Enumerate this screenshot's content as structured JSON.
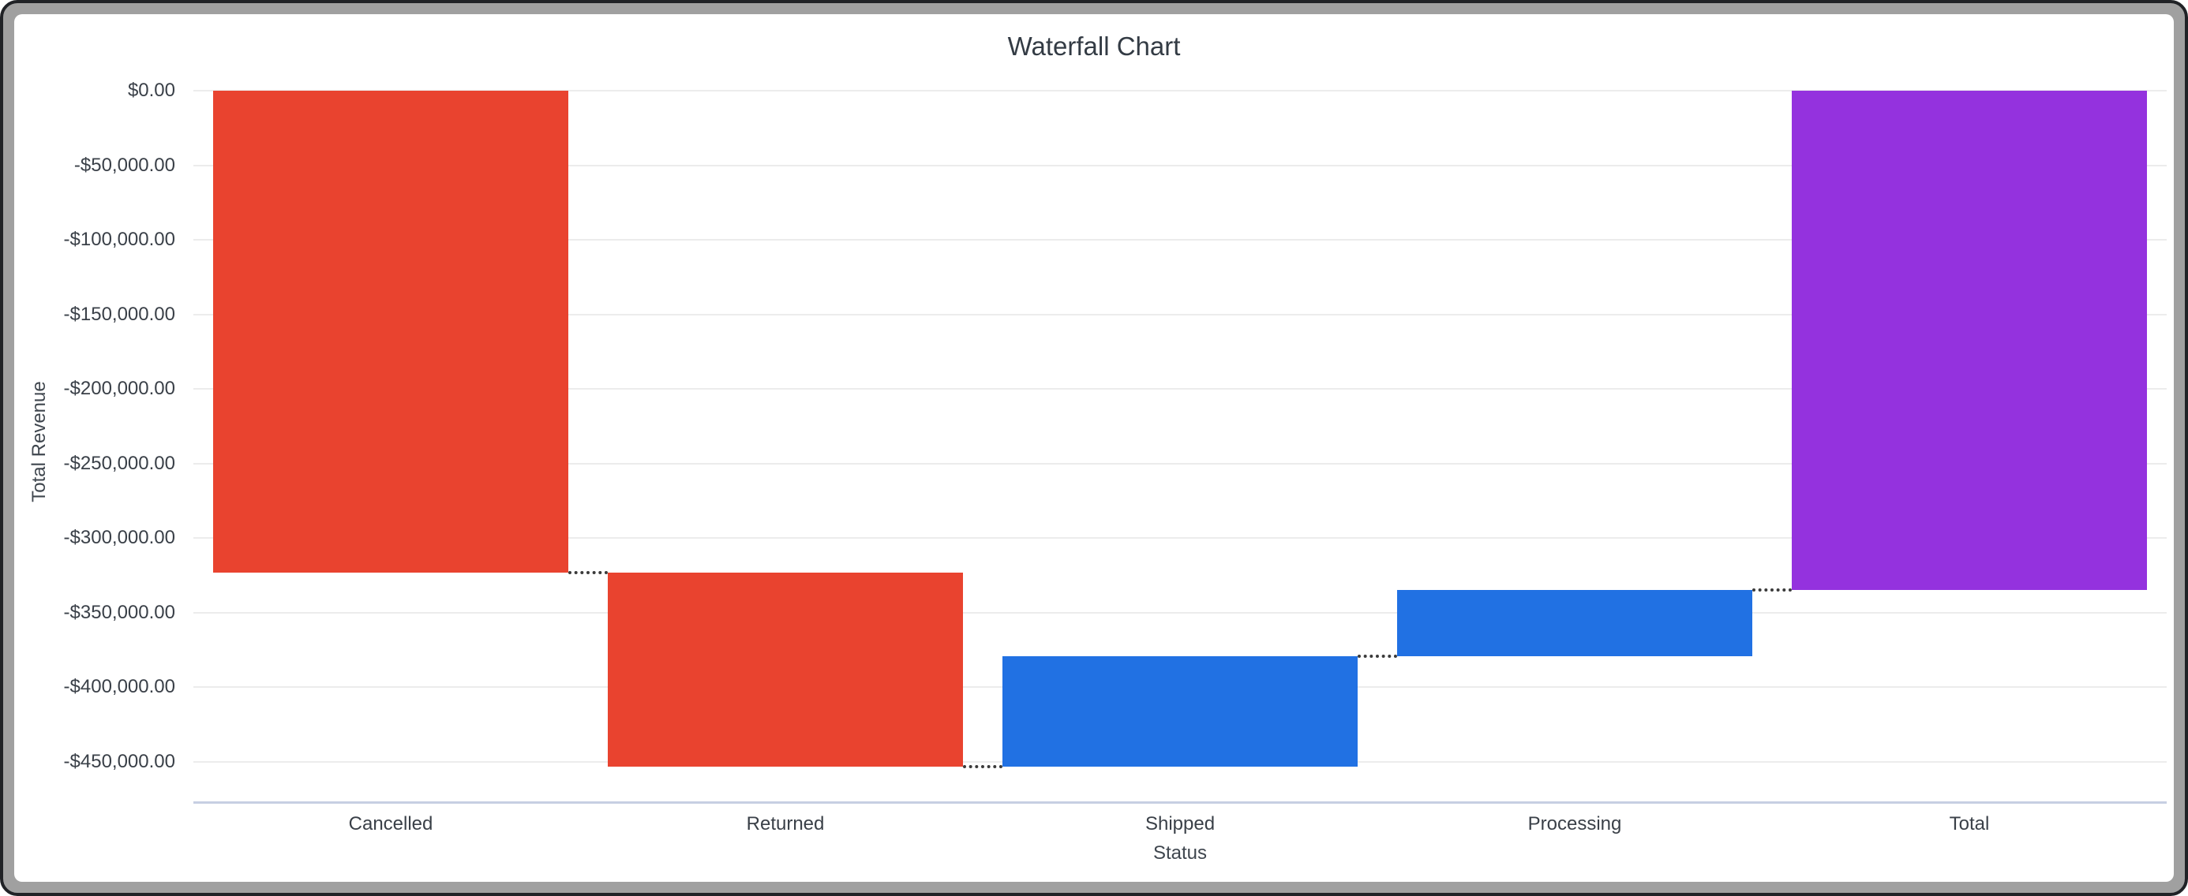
{
  "chart": {
    "title": "Waterfall Chart",
    "x_axis_title": "Status",
    "y_axis_title": "Total Revenue"
  },
  "chart_data": {
    "type": "bar",
    "variant": "waterfall",
    "title": "Waterfall Chart",
    "xlabel": "Status",
    "ylabel": "Total Revenue",
    "categories": [
      "Cancelled",
      "Returned",
      "Shipped",
      "Processing",
      "Total"
    ],
    "values": [
      -323100,
      -130100,
      74100,
      44400,
      -334700
    ],
    "series": [
      {
        "name": "Cancelled",
        "delta": -323100,
        "start": 0,
        "end": -323100,
        "role": "decrease",
        "color": "#e9432f"
      },
      {
        "name": "Returned",
        "delta": -130100,
        "start": -323100,
        "end": -453200,
        "role": "decrease",
        "color": "#e9432f"
      },
      {
        "name": "Shipped",
        "delta": 74100,
        "start": -453200,
        "end": -379100,
        "role": "increase",
        "color": "#2171e3"
      },
      {
        "name": "Processing",
        "delta": 44400,
        "start": -379100,
        "end": -334700,
        "role": "increase",
        "color": "#2171e3"
      },
      {
        "name": "Total",
        "delta": -334700,
        "start": 0,
        "end": -334700,
        "role": "total",
        "color": "#9432de"
      }
    ],
    "y_ticks": [
      {
        "label": "$0.00",
        "value": 0
      },
      {
        "label": "-$50,000.00",
        "value": -50000
      },
      {
        "label": "-$100,000.00",
        "value": -100000
      },
      {
        "label": "-$150,000.00",
        "value": -150000
      },
      {
        "label": "-$200,000.00",
        "value": -200000
      },
      {
        "label": "-$250,000.00",
        "value": -250000
      },
      {
        "label": "-$300,000.00",
        "value": -300000
      },
      {
        "label": "-$350,000.00",
        "value": -350000
      },
      {
        "label": "-$400,000.00",
        "value": -400000
      },
      {
        "label": "-$450,000.00",
        "value": -450000
      }
    ],
    "ylim": [
      -476500,
      0
    ],
    "grid": true,
    "legend": "none",
    "connector_style": "dotted"
  },
  "colors": {
    "decrease": "#e9432f",
    "increase": "#2171e3",
    "total": "#9432de",
    "gridline": "#ececec",
    "axis_line": "#c7cfe2",
    "connector": "#3b3b3b",
    "text": "#3a4048",
    "title_text": "#333b44",
    "frame_gray": "#a0a0a0",
    "frame_dark": "#202226"
  }
}
